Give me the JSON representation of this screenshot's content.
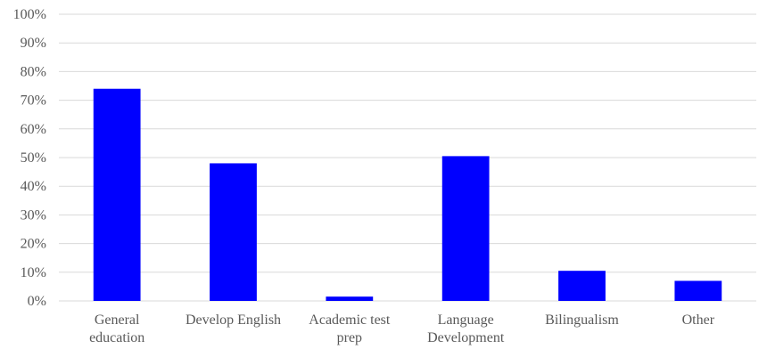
{
  "chart_data": {
    "type": "bar",
    "categories": [
      [
        "General",
        "education"
      ],
      [
        "Develop English"
      ],
      [
        "Academic test",
        "prep"
      ],
      [
        "Language",
        "Development"
      ],
      [
        "Bilingualism"
      ],
      [
        "Other"
      ]
    ],
    "values": [
      74,
      48,
      1.5,
      50.5,
      10.5,
      7
    ],
    "ylim": [
      0,
      100
    ],
    "ytick_step": 10,
    "ytick_labels": [
      "0%",
      "10%",
      "20%",
      "30%",
      "40%",
      "50%",
      "60%",
      "70%",
      "80%",
      "90%",
      "100%"
    ],
    "title": "",
    "xlabel": "",
    "ylabel": "",
    "grid": true,
    "bar_color": "#0000ff",
    "grid_color": "#d9d9d9",
    "text_color": "#595959"
  }
}
